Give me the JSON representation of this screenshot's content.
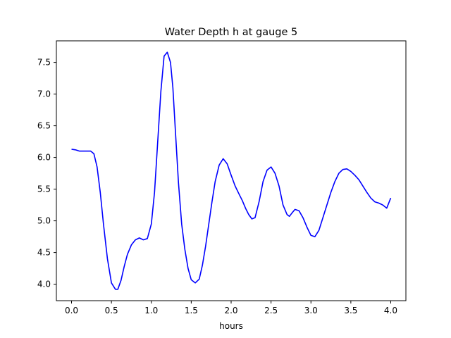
{
  "chart_data": {
    "type": "line",
    "title": "Water Depth h at gauge 5",
    "xlabel": "hours",
    "ylabel": "",
    "xlim": [
      -0.19,
      4.19
    ],
    "ylim": [
      3.74,
      7.84
    ],
    "xticks": [
      0.0,
      0.5,
      1.0,
      1.5,
      2.0,
      2.5,
      3.0,
      3.5,
      4.0
    ],
    "xtick_labels": [
      "0.0",
      "0.5",
      "1.0",
      "1.5",
      "2.0",
      "2.5",
      "3.0",
      "3.5",
      "4.0"
    ],
    "yticks": [
      4.0,
      4.5,
      5.0,
      5.5,
      6.0,
      6.5,
      7.0,
      7.5
    ],
    "ytick_labels": [
      "4.0",
      "4.5",
      "5.0",
      "5.5",
      "6.0",
      "6.5",
      "7.0",
      "7.5"
    ],
    "grid": false,
    "series": [
      {
        "color": "#0000ff",
        "x": [
          0.0,
          0.05,
          0.1,
          0.15,
          0.2,
          0.24,
          0.28,
          0.32,
          0.36,
          0.4,
          0.45,
          0.5,
          0.55,
          0.58,
          0.62,
          0.66,
          0.7,
          0.75,
          0.8,
          0.85,
          0.9,
          0.95,
          1.0,
          1.04,
          1.08,
          1.12,
          1.16,
          1.2,
          1.24,
          1.27,
          1.3,
          1.34,
          1.38,
          1.42,
          1.46,
          1.5,
          1.55,
          1.6,
          1.64,
          1.68,
          1.72,
          1.76,
          1.8,
          1.85,
          1.9,
          1.95,
          2.0,
          2.05,
          2.1,
          2.14,
          2.18,
          2.22,
          2.26,
          2.3,
          2.35,
          2.4,
          2.45,
          2.5,
          2.55,
          2.6,
          2.65,
          2.7,
          2.73,
          2.76,
          2.8,
          2.85,
          2.9,
          2.95,
          3.0,
          3.05,
          3.1,
          3.15,
          3.2,
          3.25,
          3.3,
          3.35,
          3.4,
          3.45,
          3.5,
          3.55,
          3.6,
          3.65,
          3.7,
          3.75,
          3.8,
          3.85,
          3.9,
          3.95,
          4.0
        ],
        "y": [
          6.13,
          6.12,
          6.1,
          6.1,
          6.1,
          6.1,
          6.06,
          5.85,
          5.45,
          4.95,
          4.4,
          4.02,
          3.92,
          3.92,
          4.06,
          4.28,
          4.47,
          4.62,
          4.7,
          4.73,
          4.7,
          4.72,
          4.95,
          5.45,
          6.25,
          7.05,
          7.6,
          7.66,
          7.5,
          7.1,
          6.45,
          5.6,
          4.95,
          4.55,
          4.25,
          4.07,
          4.02,
          4.08,
          4.3,
          4.6,
          4.95,
          5.3,
          5.62,
          5.88,
          5.98,
          5.9,
          5.72,
          5.55,
          5.42,
          5.32,
          5.2,
          5.1,
          5.03,
          5.05,
          5.3,
          5.62,
          5.8,
          5.85,
          5.75,
          5.55,
          5.25,
          5.1,
          5.07,
          5.12,
          5.18,
          5.16,
          5.05,
          4.9,
          4.77,
          4.75,
          4.85,
          5.05,
          5.25,
          5.45,
          5.62,
          5.75,
          5.81,
          5.82,
          5.78,
          5.72,
          5.65,
          5.55,
          5.45,
          5.36,
          5.3,
          5.28,
          5.25,
          5.2,
          5.36
        ]
      }
    ]
  }
}
